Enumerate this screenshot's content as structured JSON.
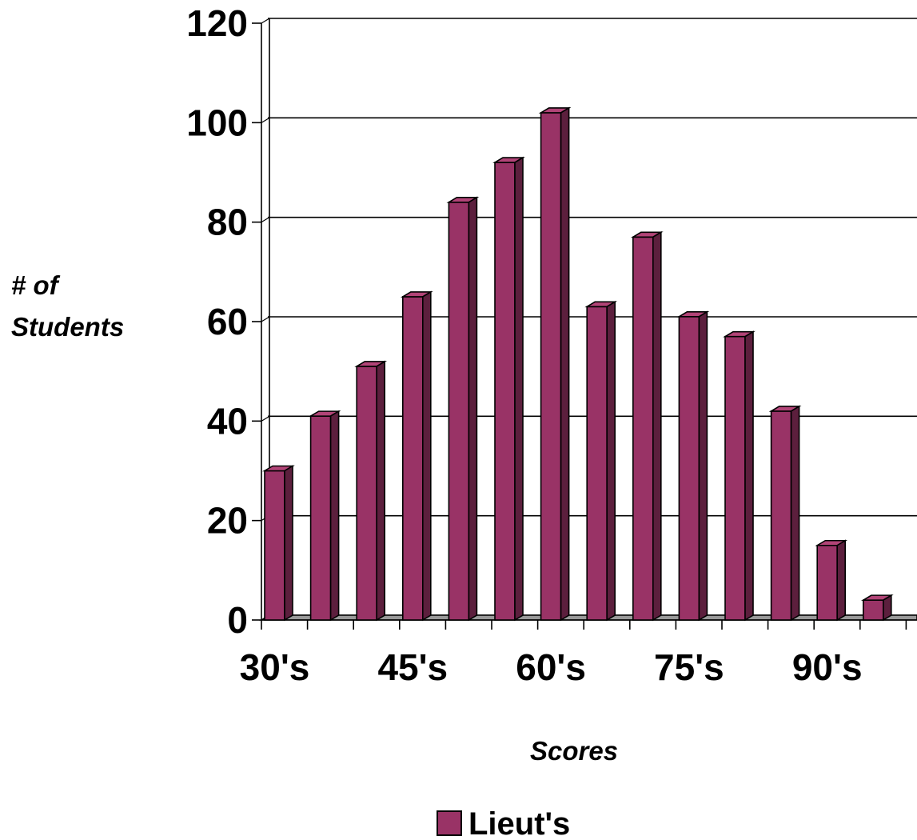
{
  "chart_data": {
    "type": "bar",
    "title": "",
    "xlabel": "Scores",
    "ylabel_lines": [
      "# of",
      "Students"
    ],
    "categories": [
      "30's",
      "",
      "",
      "45's",
      "",
      "",
      "60's",
      "",
      "",
      "75's",
      "",
      "",
      "90's",
      "",
      ""
    ],
    "series": [
      {
        "name": "Lieut's",
        "values": [
          30,
          41,
          51,
          65,
          84,
          92,
          102,
          63,
          77,
          61,
          57,
          42,
          15,
          4,
          0
        ]
      }
    ],
    "ylim": [
      0,
      120
    ],
    "yticks": [
      0,
      20,
      40,
      60,
      80,
      100,
      120
    ],
    "grid": true,
    "legend_position": "bottom-center",
    "style_3d": true,
    "colors": {
      "bar_front": "#993366",
      "bar_top": "#b24477",
      "bar_side": "#5c1f3d",
      "floor": "#999999",
      "outline": "#000000"
    }
  }
}
